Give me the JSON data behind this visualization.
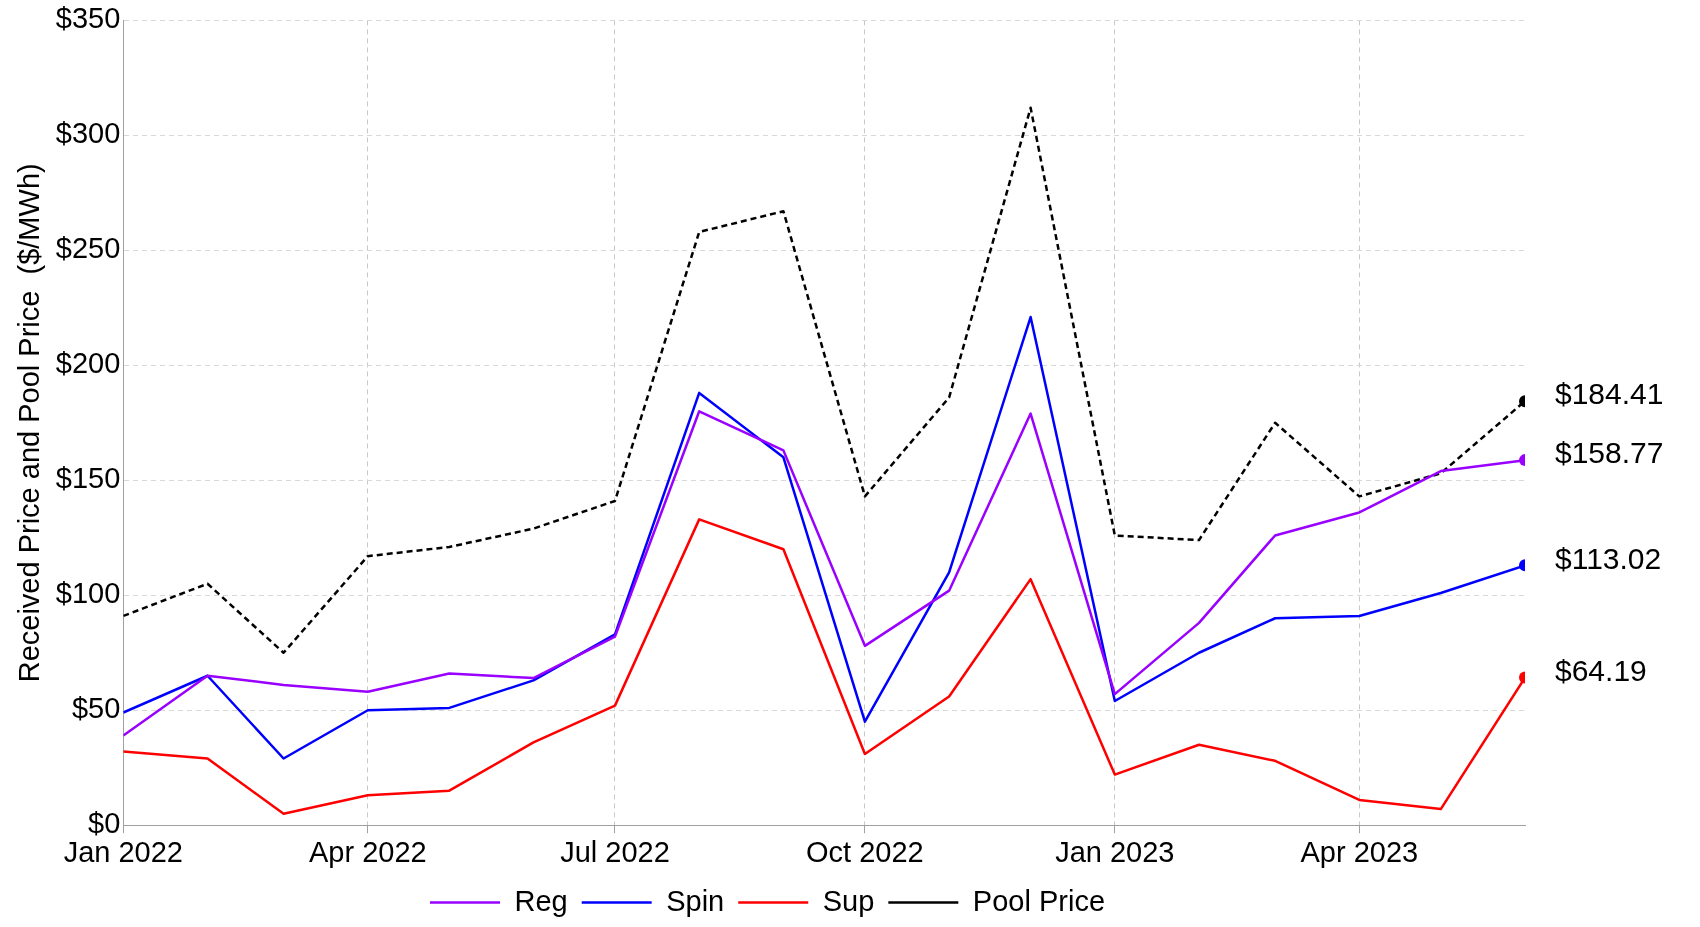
{
  "chart_data": {
    "type": "line",
    "ylabel": "Received Price and Pool Price  ($/MWh)",
    "x": [
      "2022-01",
      "2022-02",
      "2022-03",
      "2022-04",
      "2022-05",
      "2022-06",
      "2022-07",
      "2022-08",
      "2022-09",
      "2022-10",
      "2022-11",
      "2022-12",
      "2023-01",
      "2023-02",
      "2023-03",
      "2023-04",
      "2023-05",
      "2023-06"
    ],
    "series": [
      {
        "name": "Reg",
        "color": "#9900ff",
        "values": [
          39,
          65,
          61,
          58,
          66,
          64,
          82,
          180,
          163,
          78,
          102,
          179,
          57,
          88,
          126,
          136,
          154,
          158.77
        ],
        "value_labels": [
          null,
          null,
          null,
          null,
          null,
          null,
          null,
          null,
          null,
          null,
          null,
          null,
          null,
          null,
          null,
          null,
          null,
          "$158.77"
        ]
      },
      {
        "name": "Spin",
        "color": "#0000ff",
        "values": [
          49,
          65,
          29,
          50,
          51,
          63,
          83,
          188,
          160,
          45,
          110,
          221,
          54,
          75,
          90,
          91,
          101,
          113.02
        ],
        "value_labels": [
          null,
          null,
          null,
          null,
          null,
          null,
          null,
          null,
          null,
          null,
          null,
          null,
          null,
          null,
          null,
          null,
          null,
          "$113.02"
        ]
      },
      {
        "name": "Sup",
        "color": "#ff0000",
        "values": [
          32,
          29,
          5,
          13,
          15,
          36,
          52,
          133,
          120,
          31,
          56,
          107,
          22,
          35,
          28,
          11,
          7,
          64.19
        ],
        "value_labels": [
          null,
          null,
          null,
          null,
          null,
          null,
          null,
          null,
          null,
          null,
          null,
          null,
          null,
          null,
          null,
          null,
          null,
          "$64.19"
        ]
      },
      {
        "name": "Pool Price",
        "color": "#000000",
        "line_style": "dashed",
        "values": [
          91,
          105,
          75,
          117,
          121,
          129,
          141,
          258,
          267,
          143,
          186,
          312,
          126,
          124,
          175,
          143,
          153,
          184.41
        ],
        "value_labels": [
          null,
          null,
          null,
          null,
          null,
          null,
          null,
          null,
          null,
          null,
          null,
          null,
          null,
          null,
          null,
          null,
          null,
          "$184.41"
        ]
      }
    ],
    "xlim": [
      "2022-01",
      "2023-06"
    ],
    "xticks": [
      {
        "value": "2022-01",
        "label": "Jan 2022"
      },
      {
        "value": "2022-04",
        "label": "Apr 2022"
      },
      {
        "value": "2022-07",
        "label": "Jul 2022"
      },
      {
        "value": "2022-10",
        "label": "Oct 2022"
      },
      {
        "value": "2023-01",
        "label": "Jan 2023"
      },
      {
        "value": "2023-04",
        "label": "Apr 2023"
      }
    ],
    "ylim": [
      0,
      350
    ],
    "yticks": [
      {
        "value": 0,
        "label": "$0"
      },
      {
        "value": 50,
        "label": "$50"
      },
      {
        "value": 100,
        "label": "$100"
      },
      {
        "value": 150,
        "label": "$150"
      },
      {
        "value": 200,
        "label": "$200"
      },
      {
        "value": 250,
        "label": "$250"
      },
      {
        "value": 300,
        "label": "$300"
      },
      {
        "value": 350,
        "label": "$350"
      }
    ],
    "grid": true,
    "legend": "bottom"
  }
}
